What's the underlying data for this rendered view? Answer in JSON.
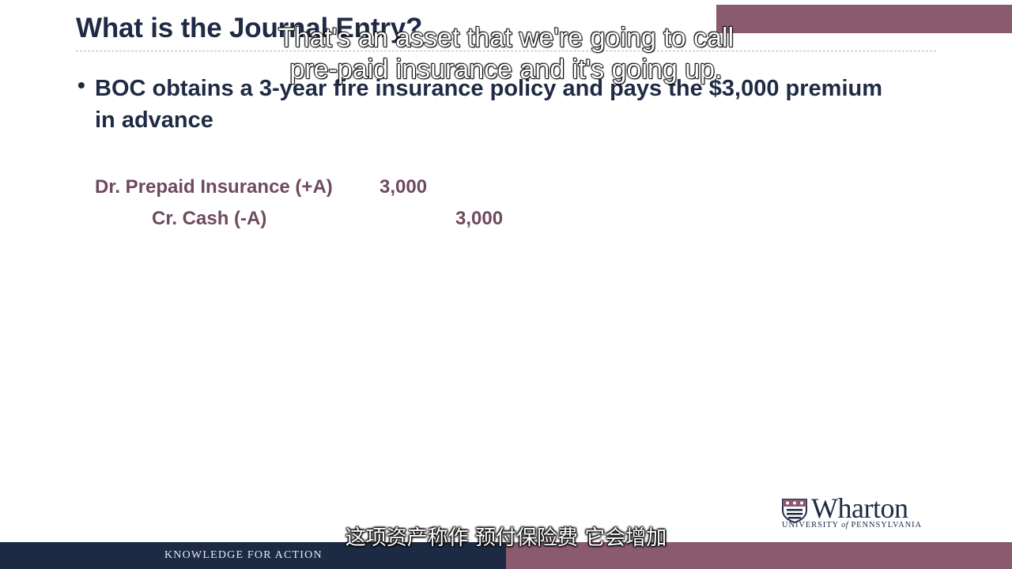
{
  "slide": {
    "title": "What is the Journal Entry?",
    "bullet_marker": "•",
    "bullet": "BOC obtains a 3-year fire insurance policy and pays the $3,000 premium in advance",
    "entry": {
      "debit_account": "Dr. Prepaid Insurance (+A)",
      "debit_amount": "3,000",
      "credit_account": "Cr.  Cash (-A)",
      "credit_amount": "3,000"
    }
  },
  "subtitles": {
    "english_line1": "That's an asset that we're going to call",
    "english_line2": "pre-paid insurance and it's going up.",
    "chinese": "这项资产称作 预付保险费  它会增加"
  },
  "logo": {
    "name": "Wharton",
    "sub_prefix": "UNIVERSITY ",
    "sub_of": "of",
    "sub_suffix": " PENNSYLVANIA"
  },
  "footer": {
    "tagline": "KNOWLEDGE FOR ACTION"
  },
  "colors": {
    "navy": "#1c2a44",
    "plum": "#8a5a6e",
    "entry_text": "#6e4a5e"
  }
}
